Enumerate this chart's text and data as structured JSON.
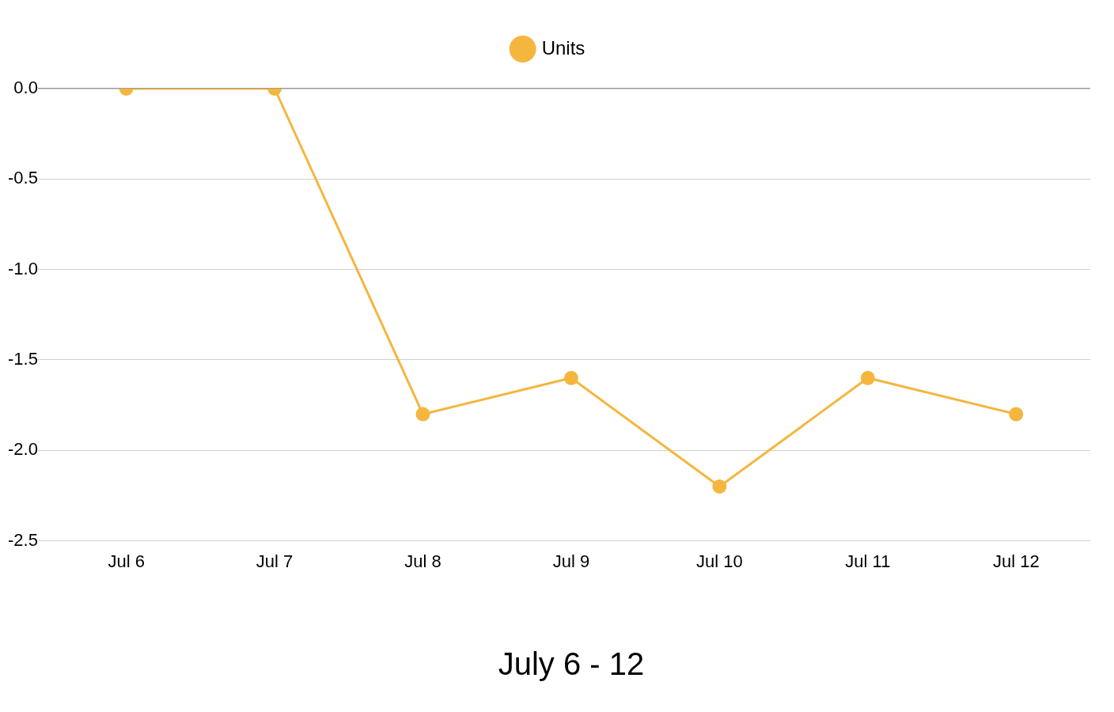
{
  "chart_data": {
    "type": "line",
    "xlabel": "July 6 - 12",
    "categories": [
      "Jul 6",
      "Jul 7",
      "Jul 8",
      "Jul 9",
      "Jul 10",
      "Jul 11",
      "Jul 12"
    ],
    "series": [
      {
        "name": "Units",
        "color": "#f4b63f",
        "values": [
          0,
          0,
          -1.8,
          -1.6,
          -2.2,
          -1.6,
          -1.8
        ]
      }
    ],
    "ylim": [
      -2.5,
      0
    ],
    "yticks": [
      -2.5,
      {
        "value": -2,
        "label": "-2.0"
      },
      -1.5,
      {
        "value": -1,
        "label": "-1.0"
      },
      -0.5,
      {
        "value": 0,
        "label": "0.0"
      }
    ],
    "grid": "y",
    "legend": "top",
    "marker": "circle",
    "line_style": "solid"
  }
}
